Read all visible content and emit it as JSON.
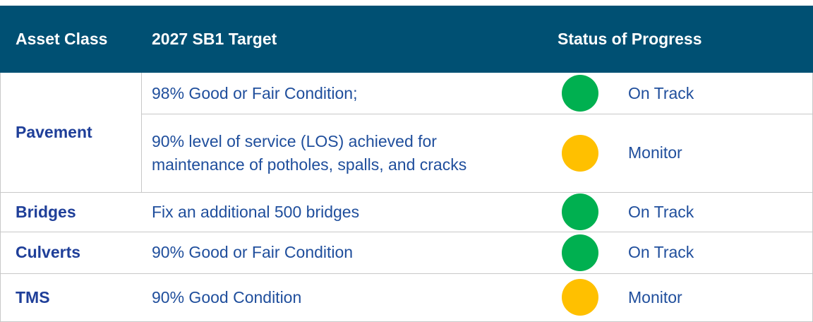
{
  "table": {
    "columns": [
      "Asset Class",
      "2027 SB1 Target",
      "Status of Progress"
    ],
    "groups": [
      {
        "asset": "Pavement",
        "targets": [
          {
            "target": "98% Good or Fair Condition;",
            "status": "On Track",
            "color": "#00b050"
          },
          {
            "target": "90% level of service (LOS) achieved for maintenance of potholes, spalls, and cracks",
            "status": "Monitor",
            "color": "#ffc000"
          }
        ]
      },
      {
        "asset": "Bridges",
        "targets": [
          {
            "target": "Fix an additional 500 bridges",
            "status": "On Track",
            "color": "#00b050"
          }
        ]
      },
      {
        "asset": "Culverts",
        "targets": [
          {
            "target": "90% Good or Fair Condition",
            "status": "On Track",
            "color": "#00b050"
          }
        ]
      },
      {
        "asset": "TMS",
        "targets": [
          {
            "target": "90% Good Condition",
            "status": "Monitor",
            "color": "#ffc000"
          }
        ]
      }
    ]
  }
}
